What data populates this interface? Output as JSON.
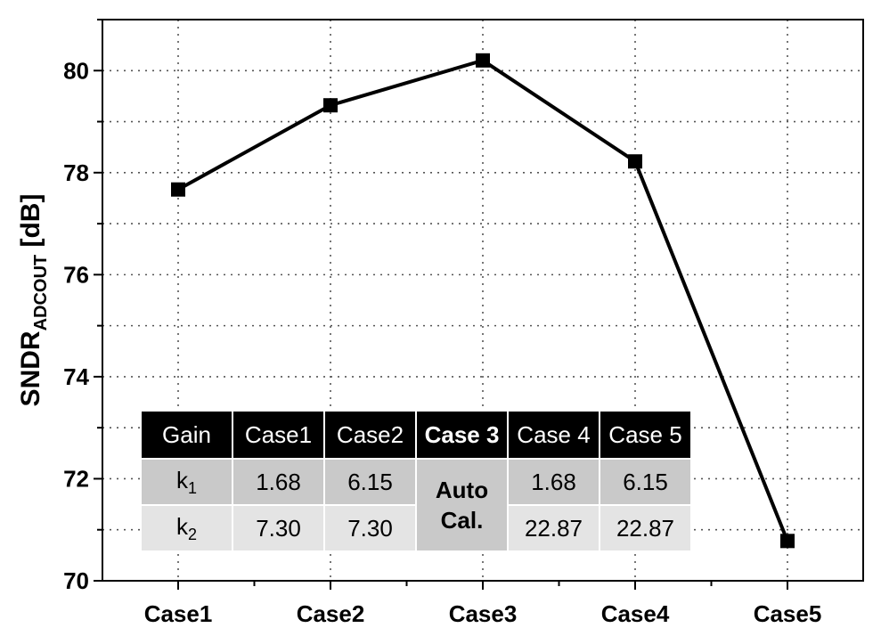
{
  "chart_data": {
    "type": "line",
    "title": "",
    "xlabel": "",
    "ylabel": {
      "main": "SNDR",
      "sub": "ADCOUT",
      "unit": " [dB]"
    },
    "categories": [
      "Case1",
      "Case2",
      "Case3",
      "Case4",
      "Case5"
    ],
    "values": [
      77.67,
      79.32,
      80.2,
      78.22,
      70.78
    ],
    "ylim": [
      70,
      81
    ],
    "yticks": [
      "70",
      "72",
      "74",
      "76",
      "78",
      "80"
    ],
    "grid": true,
    "marker": "square",
    "color": "#000000"
  },
  "table": {
    "header": [
      "Gain",
      "Case1",
      "Case2",
      "Case 3",
      "Case 4",
      "Case 5"
    ],
    "row_k1": {
      "label": "k",
      "sub": "1",
      "values": [
        "1.68",
        "6.15",
        "1.68",
        "6.15"
      ]
    },
    "row_k2": {
      "label": "k",
      "sub": "2",
      "values": [
        "7.30",
        "7.30",
        "22.87",
        "22.87"
      ]
    },
    "auto_line1": "Auto",
    "auto_line2": "Cal."
  }
}
